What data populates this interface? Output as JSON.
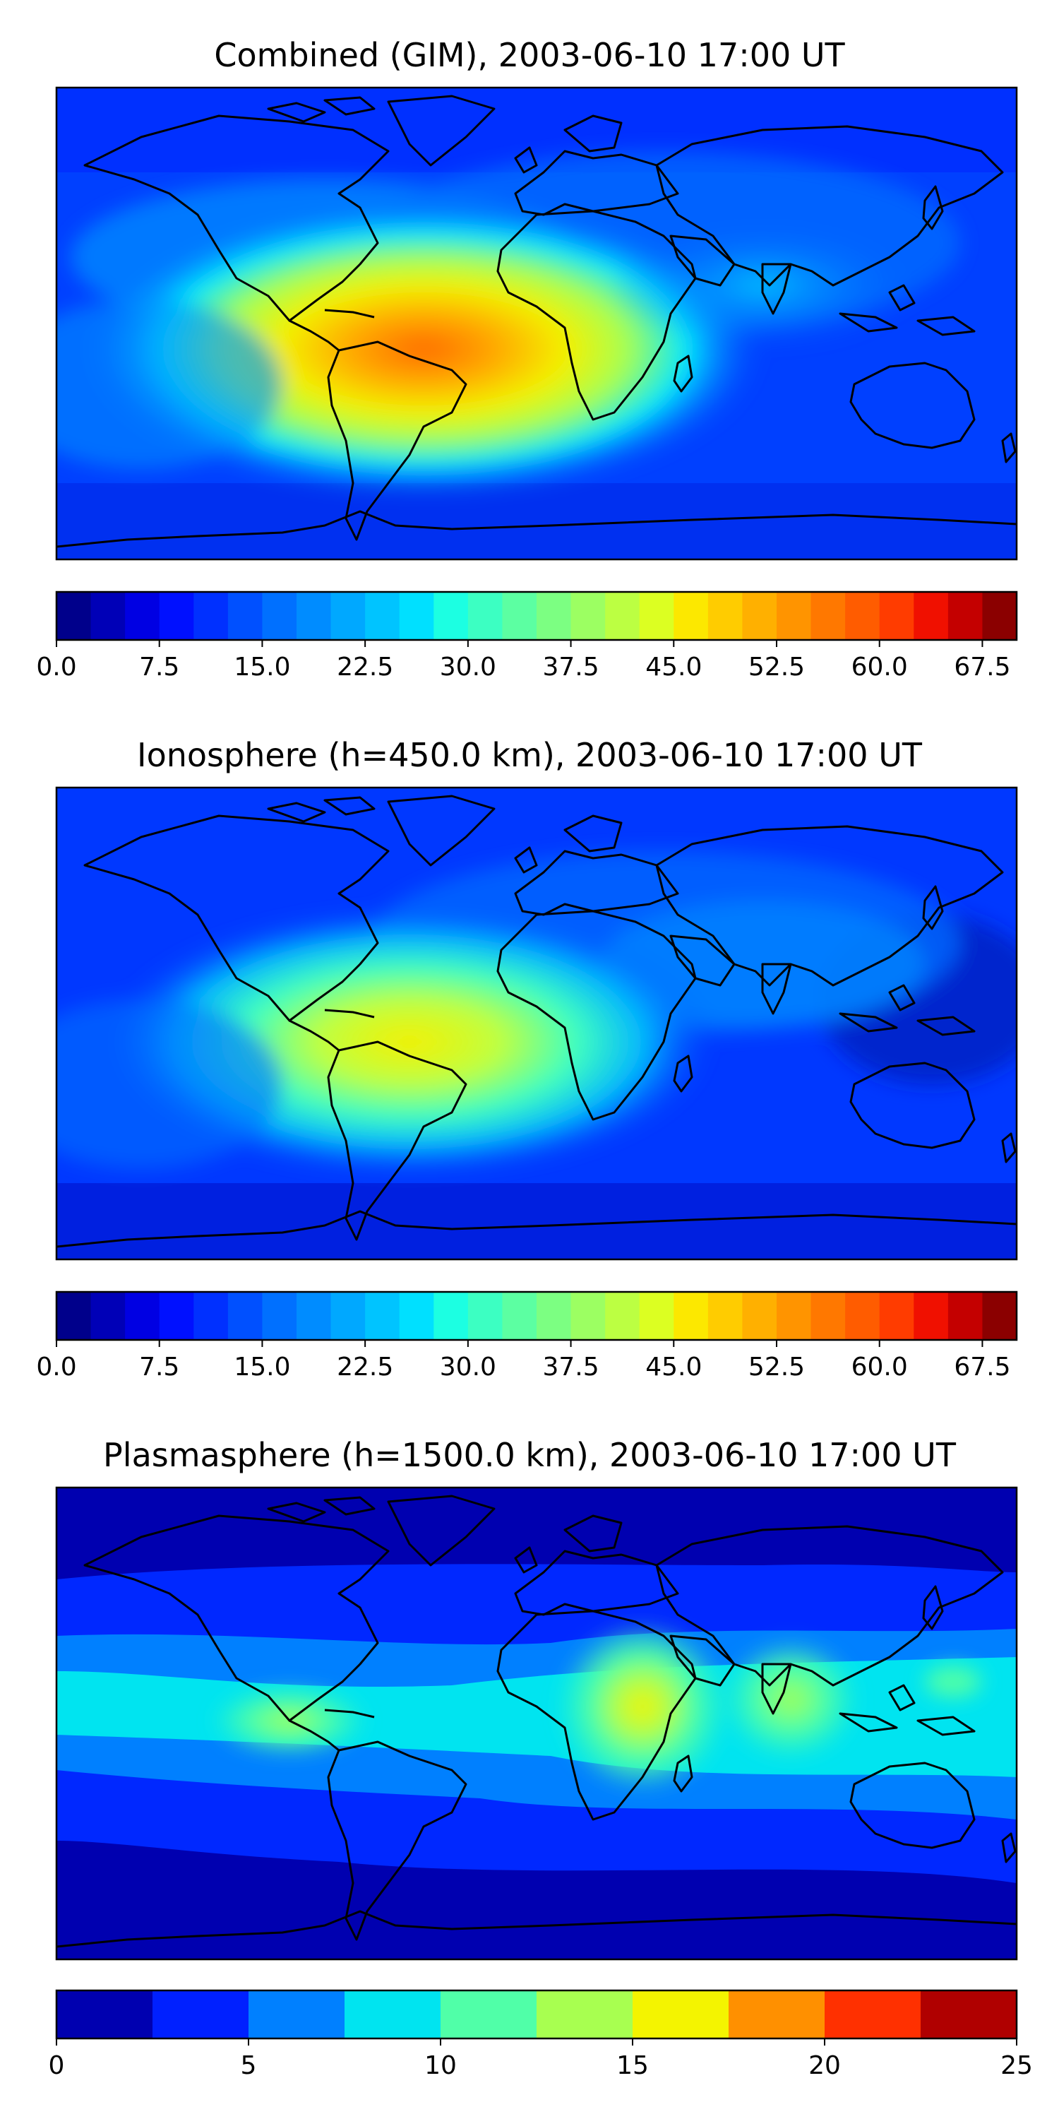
{
  "panels": [
    {
      "title": "Combined (GIM), 2003-06-10 17:00 UT",
      "colorbar": {
        "levels": 28,
        "colors": [
          "#00008b",
          "#0000b7",
          "#0000e3",
          "#0010ff",
          "#0030ff",
          "#0050ff",
          "#0070ff",
          "#008cff",
          "#00a8ff",
          "#00c4ff",
          "#00e0ff",
          "#1cffe2",
          "#3cffc2",
          "#5cffa2",
          "#7cff82",
          "#9cff62",
          "#bcff42",
          "#dcff22",
          "#fce800",
          "#ffcc00",
          "#ffb000",
          "#ff9400",
          "#ff7800",
          "#ff5c00",
          "#ff3c00",
          "#f01000",
          "#c40000",
          "#8b0000"
        ],
        "tick_labels": [
          "0.0",
          "7.5",
          "15.0",
          "22.5",
          "30.0",
          "37.5",
          "45.0",
          "52.5",
          "60.0",
          "67.5"
        ],
        "tick_values": [
          0,
          7.5,
          15,
          22.5,
          30,
          37.5,
          45,
          52.5,
          60,
          67.5
        ],
        "range": [
          0,
          70
        ]
      }
    },
    {
      "title": "Ionosphere  (h=450.0 km), 2003-06-10 17:00 UT",
      "colorbar": {
        "levels": 28,
        "colors": [
          "#00008b",
          "#0000b7",
          "#0000e3",
          "#0010ff",
          "#0030ff",
          "#0050ff",
          "#0070ff",
          "#008cff",
          "#00a8ff",
          "#00c4ff",
          "#00e0ff",
          "#1cffe2",
          "#3cffc2",
          "#5cffa2",
          "#7cff82",
          "#9cff62",
          "#bcff42",
          "#dcff22",
          "#fce800",
          "#ffcc00",
          "#ffb000",
          "#ff9400",
          "#ff7800",
          "#ff5c00",
          "#ff3c00",
          "#f01000",
          "#c40000",
          "#8b0000"
        ],
        "tick_labels": [
          "0.0",
          "7.5",
          "15.0",
          "22.5",
          "30.0",
          "37.5",
          "45.0",
          "52.5",
          "60.0",
          "67.5"
        ],
        "tick_values": [
          0,
          7.5,
          15,
          22.5,
          30,
          37.5,
          45,
          52.5,
          60,
          67.5
        ],
        "range": [
          0,
          70
        ]
      }
    },
    {
      "title": "Plasmasphere (h=1500.0 km), 2003-06-10 17:00 UT",
      "colorbar": {
        "levels": 10,
        "colors": [
          "#0000b0",
          "#0020ff",
          "#0080ff",
          "#00e4f0",
          "#50ffa8",
          "#a8ff50",
          "#f4f400",
          "#ff9000",
          "#ff3000",
          "#b00000"
        ],
        "tick_labels": [
          "0",
          "5",
          "10",
          "15",
          "20",
          "25"
        ],
        "tick_values": [
          0,
          5,
          10,
          15,
          20,
          25
        ],
        "range": [
          0,
          25
        ]
      }
    }
  ]
}
